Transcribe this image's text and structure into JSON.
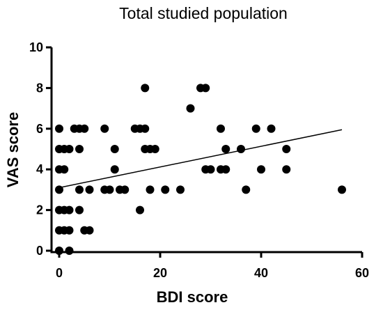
{
  "chart_data": {
    "type": "scatter",
    "title": "Total studied population",
    "xlabel": "BDI score",
    "ylabel": "VAS score",
    "xlim": [
      0,
      60
    ],
    "ylim": [
      0,
      10
    ],
    "xticks": [
      0,
      20,
      40,
      60
    ],
    "yticks": [
      0,
      2,
      4,
      6,
      8,
      10
    ],
    "grid": false,
    "marker_color": "#000000",
    "series": [
      {
        "points": [
          [
            0,
            0
          ],
          [
            0,
            1
          ],
          [
            0,
            2
          ],
          [
            0,
            3
          ],
          [
            0,
            4
          ],
          [
            0,
            5
          ],
          [
            0,
            6
          ],
          [
            1,
            1
          ],
          [
            1,
            2
          ],
          [
            1,
            4
          ],
          [
            1,
            5
          ],
          [
            2,
            0
          ],
          [
            2,
            1
          ],
          [
            2,
            2
          ],
          [
            2,
            5
          ],
          [
            3,
            6
          ],
          [
            4,
            2
          ],
          [
            4,
            3
          ],
          [
            4,
            5
          ],
          [
            4,
            6
          ],
          [
            5,
            1
          ],
          [
            5,
            6
          ],
          [
            6,
            1
          ],
          [
            6,
            3
          ],
          [
            9,
            3
          ],
          [
            9,
            6
          ],
          [
            10,
            3
          ],
          [
            11,
            4
          ],
          [
            11,
            5
          ],
          [
            12,
            3
          ],
          [
            13,
            3
          ],
          [
            15,
            6
          ],
          [
            16,
            2
          ],
          [
            16,
            6
          ],
          [
            17,
            5
          ],
          [
            17,
            6
          ],
          [
            17,
            8
          ],
          [
            18,
            3
          ],
          [
            18,
            5
          ],
          [
            19,
            5
          ],
          [
            21,
            3
          ],
          [
            24,
            3
          ],
          [
            26,
            7
          ],
          [
            28,
            8
          ],
          [
            29,
            4
          ],
          [
            29,
            8
          ],
          [
            30,
            4
          ],
          [
            32,
            4
          ],
          [
            32,
            6
          ],
          [
            33,
            4
          ],
          [
            33,
            5
          ],
          [
            36,
            5
          ],
          [
            37,
            3
          ],
          [
            39,
            6
          ],
          [
            40,
            4
          ],
          [
            42,
            6
          ],
          [
            45,
            4
          ],
          [
            45,
            5
          ],
          [
            56,
            3
          ]
        ]
      }
    ],
    "fit_line": {
      "x": [
        0,
        56
      ],
      "y": [
        3.1,
        5.95
      ]
    }
  }
}
